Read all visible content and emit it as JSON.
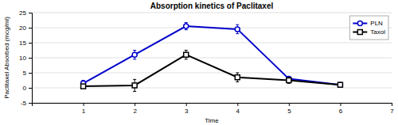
{
  "chart_data": {
    "type": "line",
    "title": "Absorption kinetics of Paclitaxel",
    "xlabel": "Time",
    "ylabel": "Paclitaxel Absorbed (mcg/ml)",
    "x": [
      1,
      2,
      3,
      4,
      5,
      6
    ],
    "xlim": [
      0,
      7
    ],
    "xticks": [
      1,
      2,
      3,
      4,
      5,
      6,
      7
    ],
    "ylim": [
      -5,
      25
    ],
    "yticks": [
      -5,
      0,
      5,
      10,
      15,
      20,
      25
    ],
    "grid": "y",
    "legend": "top-right",
    "series": [
      {
        "name": "PLN",
        "color": "#0000cc",
        "marker": "circle",
        "values": [
          1.5,
          11.0,
          20.5,
          19.5,
          3.0,
          1.0
        ],
        "errors": [
          1.0,
          1.5,
          1.2,
          1.5,
          0.8,
          0.5
        ]
      },
      {
        "name": "Taxol",
        "color": "#000000",
        "marker": "square",
        "values": [
          0.5,
          0.8,
          11.0,
          3.5,
          2.5,
          1.0
        ],
        "errors": [
          0.5,
          2.0,
          1.5,
          1.5,
          1.0,
          0.5
        ]
      }
    ]
  }
}
